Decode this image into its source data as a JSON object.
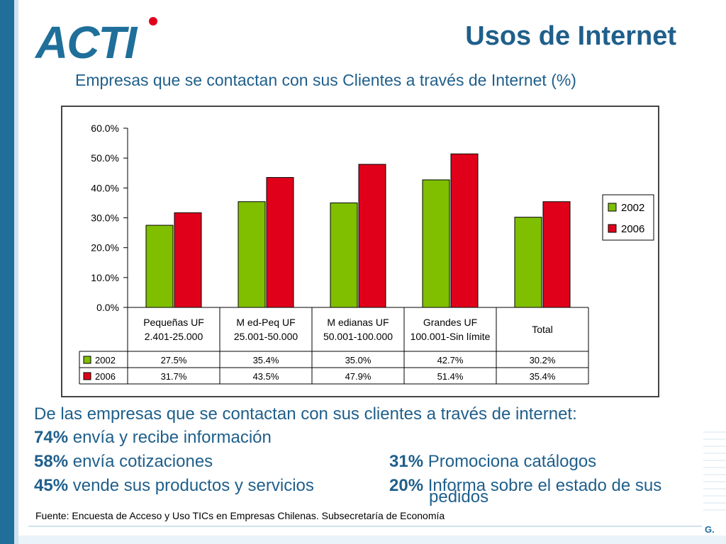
{
  "header": {
    "logo_text": "ACTI",
    "title": "Usos de Internet",
    "subtitle": "Empresas que se contactan con sus Clientes a través de Internet (%)"
  },
  "colors": {
    "accent": "#1f5f8b",
    "series_2002": "#7fbf00",
    "series_2006": "#e0001a"
  },
  "chart_data": {
    "type": "bar",
    "title": "Empresas que se contactan con sus Clientes a través de Internet (%)",
    "categories": [
      [
        "Pequeñas  UF",
        "2.401-25.000"
      ],
      [
        "M ed-Peq  UF",
        "25.001-50.000"
      ],
      [
        "M edianas  UF",
        "50.001-100.000"
      ],
      [
        "Grandes   UF",
        "100.001-Sin límite"
      ],
      [
        "Total"
      ]
    ],
    "series": [
      {
        "name": "2002",
        "values": [
          27.5,
          35.4,
          35.0,
          42.7,
          30.2
        ],
        "labels": [
          "27.5%",
          "35.4%",
          "35.0%",
          "42.7%",
          "30.2%"
        ]
      },
      {
        "name": "2006",
        "values": [
          31.7,
          43.5,
          47.9,
          51.4,
          35.4
        ],
        "labels": [
          "31.7%",
          "43.5%",
          "47.9%",
          "51.4%",
          "35.4%"
        ]
      }
    ],
    "y_ticks": [
      "0.0%",
      "10.0%",
      "20.0%",
      "30.0%",
      "40.0%",
      "50.0%",
      "60.0%"
    ],
    "ylim": [
      0,
      60
    ],
    "legend": [
      "2002",
      "2006"
    ],
    "legend_position": "right",
    "has_data_table": true,
    "xlabel": "",
    "ylabel": ""
  },
  "bullets": {
    "intro": "De las empresas que se contactan con sus clientes  a través de internet:",
    "items": [
      {
        "pct": "74%",
        "text": " envía y recibe información"
      },
      {
        "pct": "58%",
        "text": " envía cotizaciones"
      },
      {
        "pct": "45%",
        "text": " vende sus productos y servicios"
      },
      {
        "pct": "31%",
        "text": " Promociona catálogos"
      },
      {
        "pct": "20%",
        "text": " Informa sobre el estado de sus",
        "text2": "pedidos"
      }
    ]
  },
  "footer": {
    "source": "Fuente: Encuesta de Acceso y Uso TICs en Empresas Chilenas. Subsecretaría de Economía",
    "corner": "G."
  }
}
